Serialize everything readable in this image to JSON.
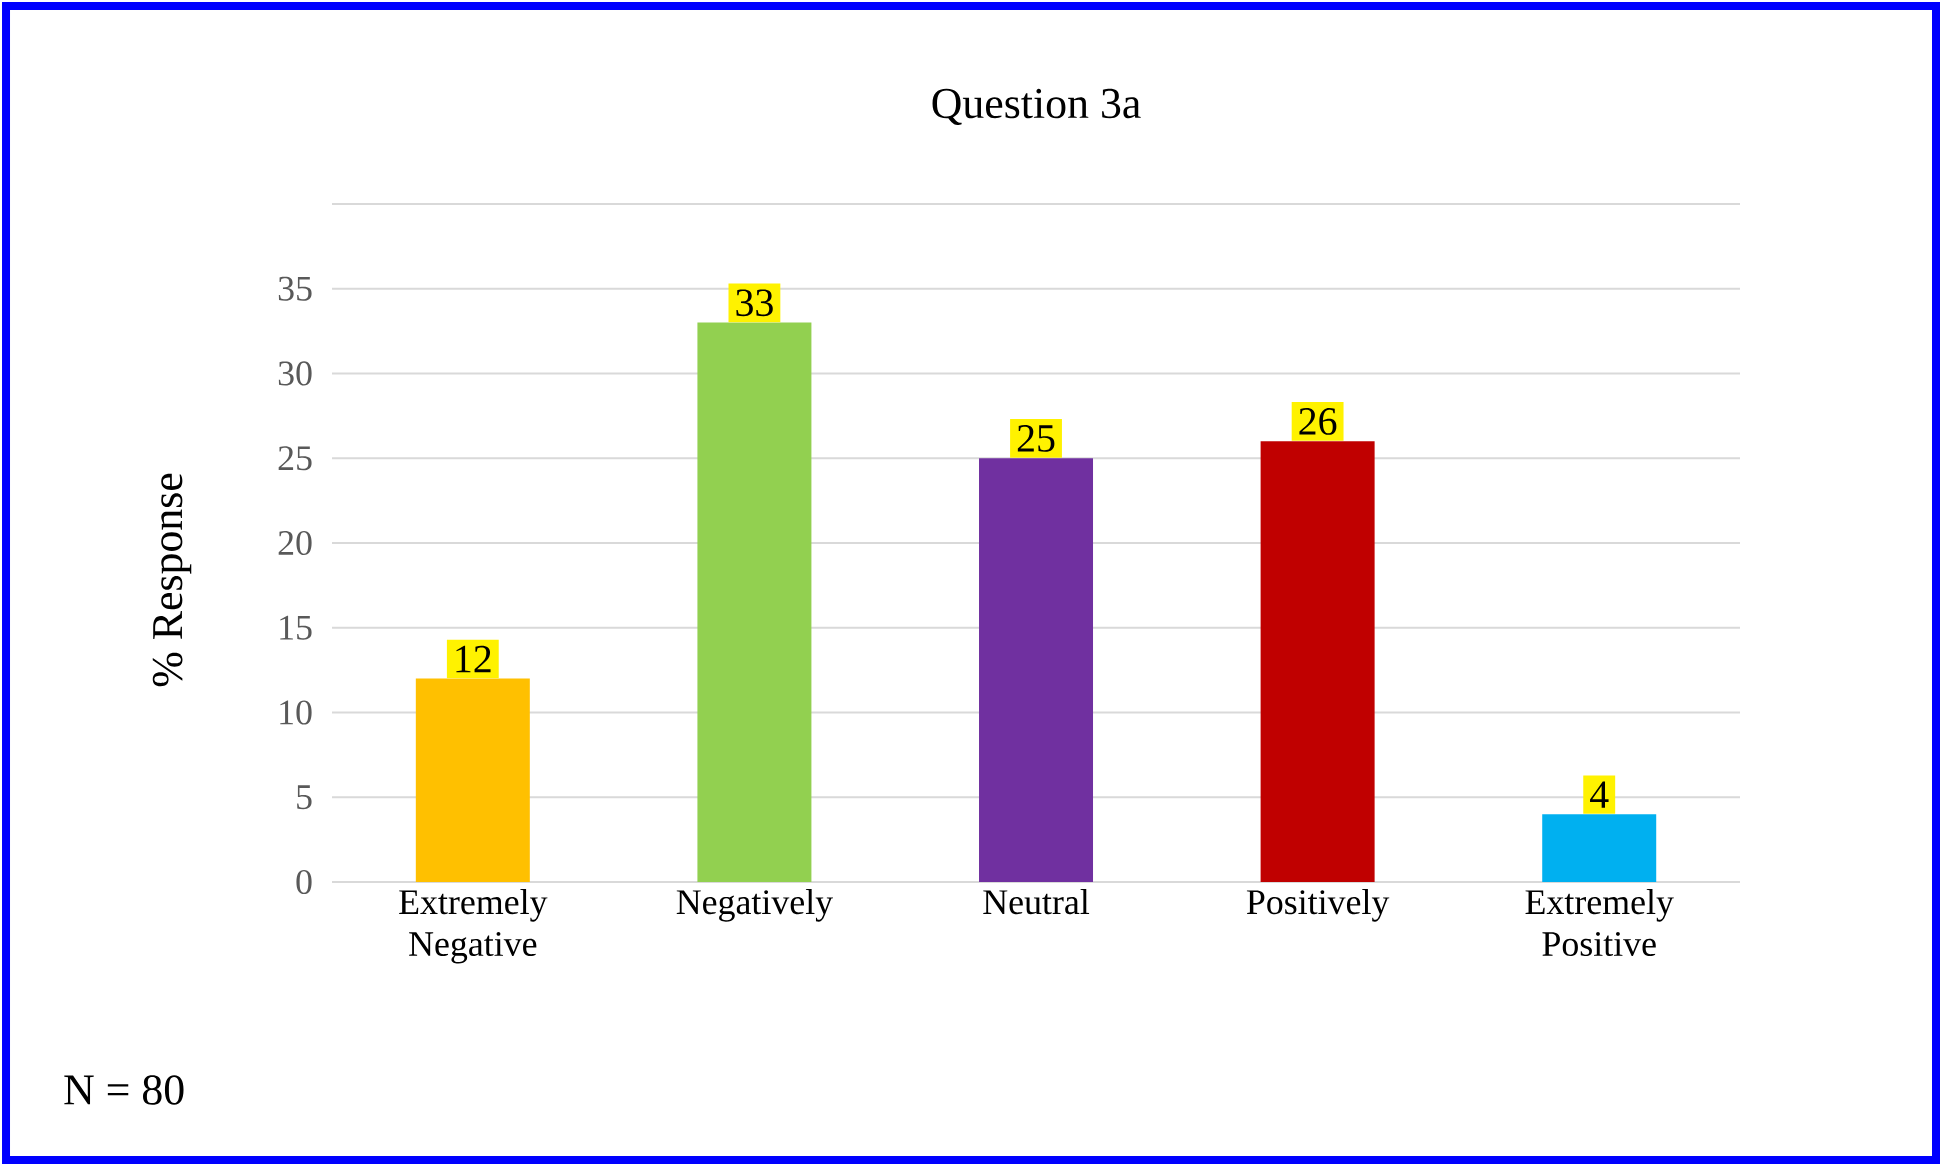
{
  "chart_data": {
    "type": "bar",
    "title": "Question 3a",
    "ylabel": "% Response",
    "categories": [
      "Extremely Negative",
      "Negatively",
      "Neutral",
      "Positively",
      "Extremely Positive"
    ],
    "values": [
      12,
      33,
      25,
      26,
      4
    ],
    "colors": [
      "#ffc000",
      "#92d050",
      "#7030a0",
      "#c00000",
      "#00b0f0"
    ],
    "ylim": [
      0,
      40
    ],
    "yticks": [
      0,
      5,
      10,
      15,
      20,
      25,
      30,
      35,
      {
        "value": 40,
        "label": null
      }
    ],
    "grid": "y",
    "data_labels": true,
    "annotations": [
      "N = 80"
    ]
  }
}
